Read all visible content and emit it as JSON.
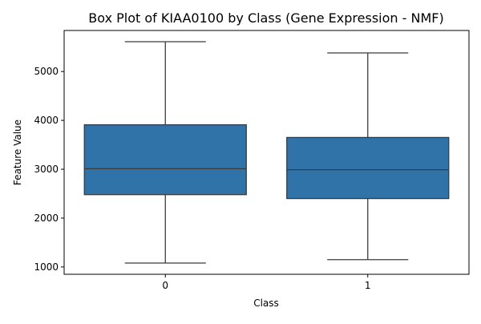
{
  "chart_data": {
    "type": "box",
    "title": "Box Plot of KIAA0100 by Class (Gene Expression - NMF)",
    "xlabel": "Class",
    "ylabel": "Feature Value",
    "categories": [
      "0",
      "1"
    ],
    "boxes": [
      {
        "category": "0",
        "whisker_low": 1080,
        "q1": 2480,
        "median": 3010,
        "q3": 3910,
        "whisker_high": 5610
      },
      {
        "category": "1",
        "whisker_low": 1150,
        "q1": 2400,
        "median": 2990,
        "q3": 3650,
        "whisker_high": 5380
      }
    ],
    "yticks": [
      1000,
      2000,
      3000,
      4000,
      5000
    ],
    "ylim": [
      850,
      5840
    ],
    "grid": false,
    "legend": "none",
    "colors": {
      "box_fill": "#2f73a9",
      "line": "#3b3b3b",
      "axes": "#000000"
    }
  }
}
